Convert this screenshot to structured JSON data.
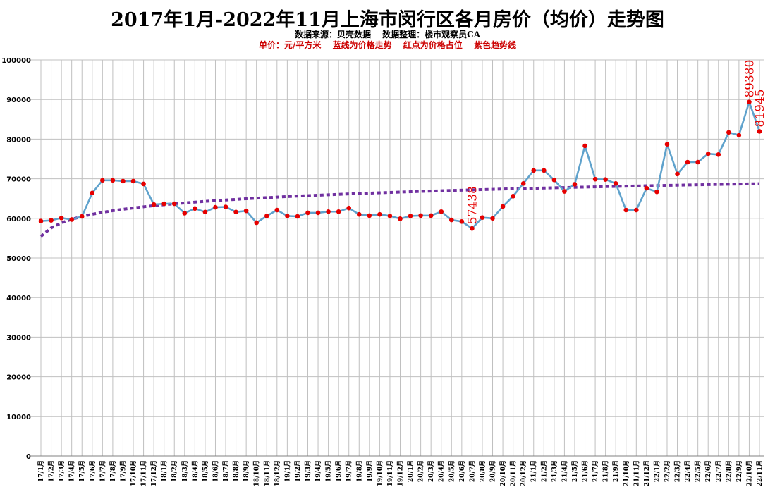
{
  "header": {
    "title": "2017年1月-2022年11月上海市闵行区各月房价（均价）走势图",
    "subtitle": "数据来源：贝壳数据　 数据整理：楼市观察员CA",
    "legend_note": "单价：元/平方米　 蓝线为价格走势　 红点为价格占位　 紫色趋势线"
  },
  "colors": {
    "line": "#5fa2cc",
    "marker": "#e60000",
    "trend": "#7030a0",
    "grid": "#c0c0c0",
    "annotation": "#e60000"
  },
  "chart_data": {
    "type": "line",
    "ylim": [
      0,
      100000
    ],
    "yticks": [
      0,
      10000,
      20000,
      30000,
      40000,
      50000,
      60000,
      70000,
      80000,
      90000,
      100000
    ],
    "categories": [
      "17/1月",
      "17/2月",
      "17/3月",
      "17/4月",
      "17/5月",
      "17/6月",
      "17/7月",
      "17/8月",
      "17/9月",
      "17/10月",
      "17/11月",
      "17/12月",
      "18/1月",
      "18/2月",
      "18/3月",
      "18/4月",
      "18/5月",
      "18/6月",
      "18/7月",
      "18/8月",
      "18/9月",
      "18/10月",
      "18/11月",
      "18/12月",
      "19/1月",
      "19/2月",
      "19/3月",
      "19/4月",
      "19/5月",
      "19/6月",
      "19/7月",
      "19/8月",
      "19/9月",
      "19/10月",
      "19/11月",
      "19/12月",
      "20/1月",
      "20/2月",
      "20/3月",
      "20/4月",
      "20/5月",
      "20/6月",
      "20/7月",
      "20/8月",
      "20/9月",
      "20/10月",
      "20/11月",
      "20/12月",
      "21/1月",
      "21/2月",
      "21/3月",
      "21/4月",
      "21/5月",
      "21/6月",
      "21/7月",
      "21/8月",
      "21/9月",
      "21/10月",
      "21/11月",
      "21/12月",
      "22/1月",
      "22/2月",
      "22/3月",
      "22/4月",
      "22/5月",
      "22/6月",
      "22/7月",
      "22/8月",
      "22/9月",
      "22/10月",
      "22/11月"
    ],
    "series": [
      {
        "values": [
          59300,
          59500,
          60100,
          59700,
          60500,
          66400,
          69600,
          69600,
          69400,
          69400,
          68700,
          63500,
          63700,
          63700,
          61300,
          62500,
          61600,
          62800,
          62900,
          61600,
          61900,
          58900,
          60600,
          62100,
          60600,
          60500,
          61400,
          61400,
          61700,
          61700,
          62600,
          61000,
          60700,
          61000,
          60600,
          59900,
          60600,
          60700,
          60700,
          61700,
          59600,
          59200,
          57438,
          60200,
          60000,
          63000,
          65600,
          68800,
          72100,
          72100,
          69700,
          66800,
          68600,
          78300,
          69900,
          69800,
          68800,
          62100,
          62100,
          67600,
          66700,
          78700,
          71200,
          74200,
          74200,
          76300,
          76100,
          81700,
          81000,
          89380,
          81945
        ]
      }
    ],
    "trendline": "logarithmic",
    "annotations": [
      {
        "index": 42,
        "text": "57438"
      },
      {
        "index": 69,
        "text": "89380"
      },
      {
        "index": 70,
        "text": "81945"
      }
    ]
  }
}
